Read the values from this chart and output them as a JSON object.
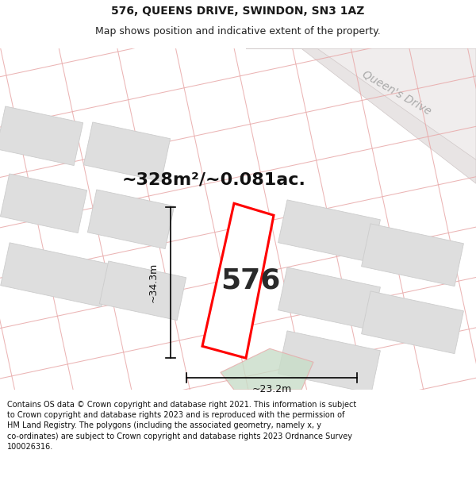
{
  "title": "576, QUEENS DRIVE, SWINDON, SN3 1AZ",
  "subtitle": "Map shows position and indicative extent of the property.",
  "footer": "Contains OS data © Crown copyright and database right 2021. This information is subject\nto Crown copyright and database rights 2023 and is reproduced with the permission of\nHM Land Registry. The polygons (including the associated geometry, namely x, y\nco-ordinates) are subject to Crown copyright and database rights 2023 Ordnance Survey\n100026316.",
  "area_label": "~328m²/~0.081ac.",
  "number_label": "576",
  "width_label": "~23.2m",
  "height_label": "~34.3m",
  "road_label": "Queen's Drive",
  "bg_color": "#ffffff",
  "map_bg": "#ffffff",
  "road_fill": "#e8e4e4",
  "road_edge": "#d0c8c8",
  "cadastral_line_color": "#e8a8a8",
  "building_fill": "#dedede",
  "building_edge": "#cccccc",
  "plot_line_color": "#ff0000",
  "green_fill": "#c8ddc8",
  "figsize": [
    6.0,
    6.25
  ],
  "dpi": 100,
  "title_fontsize": 10,
  "subtitle_fontsize": 9,
  "footer_fontsize": 7,
  "area_fontsize": 18,
  "number_fontsize": 28,
  "dim_fontsize": 9
}
